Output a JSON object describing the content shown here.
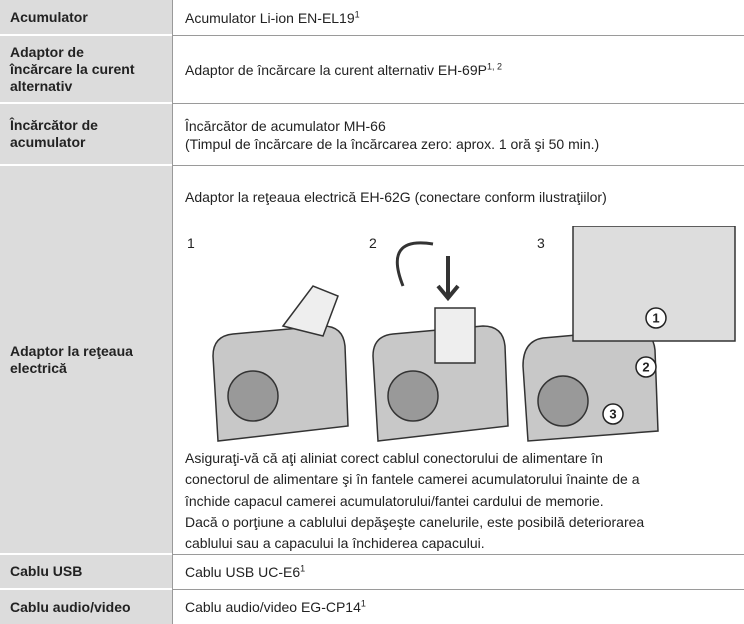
{
  "table": {
    "rows": [
      {
        "label": [
          "Acumulator"
        ],
        "text": [
          "Acumulator Li-ion EN-EL19"
        ],
        "sup": "1"
      },
      {
        "label": [
          "Adaptor de",
          "încărcare la curent",
          "alternativ"
        ],
        "text": [
          "Adaptor de încărcare la curent alternativ EH-69P"
        ],
        "sup": "1, 2"
      },
      {
        "label": [
          "Încărcător de",
          "acumulator"
        ],
        "text": [
          "Încărcător de acumulator MH-66",
          "(Timpul de încărcare de la încărcarea zero: aprox. 1 oră şi 50 min.)"
        ]
      },
      {
        "label": [
          "Adaptor la reţeaua",
          "electrică"
        ],
        "intro": "Adaptor la reţeaua electrică EH-62G (conectare conform ilustraţiilor)",
        "steps": [
          "1",
          "2",
          "3"
        ],
        "callouts": [
          "1",
          "2",
          "3"
        ],
        "note": [
          "Asiguraţi-vă că aţi aliniat corect cablul conectorului de alimentare în",
          "conectorul de alimentare şi în fantele camerei acumulatorului înainte de a",
          "închide capacul camerei acumulatorului/fantei cardului de memorie.",
          "Dacă o porţiune a cablului depăşeşte canelurile, este posibilă deteriorarea",
          "cablului sau a capacului la închiderea capacului."
        ]
      },
      {
        "label": [
          "Cablu USB"
        ],
        "text": [
          "Cablu USB UC-E6"
        ],
        "sup": "1"
      },
      {
        "label": [
          "Cablu audio/video"
        ],
        "text": [
          "Cablu audio/video EG-CP14"
        ],
        "sup": "1"
      }
    ]
  }
}
